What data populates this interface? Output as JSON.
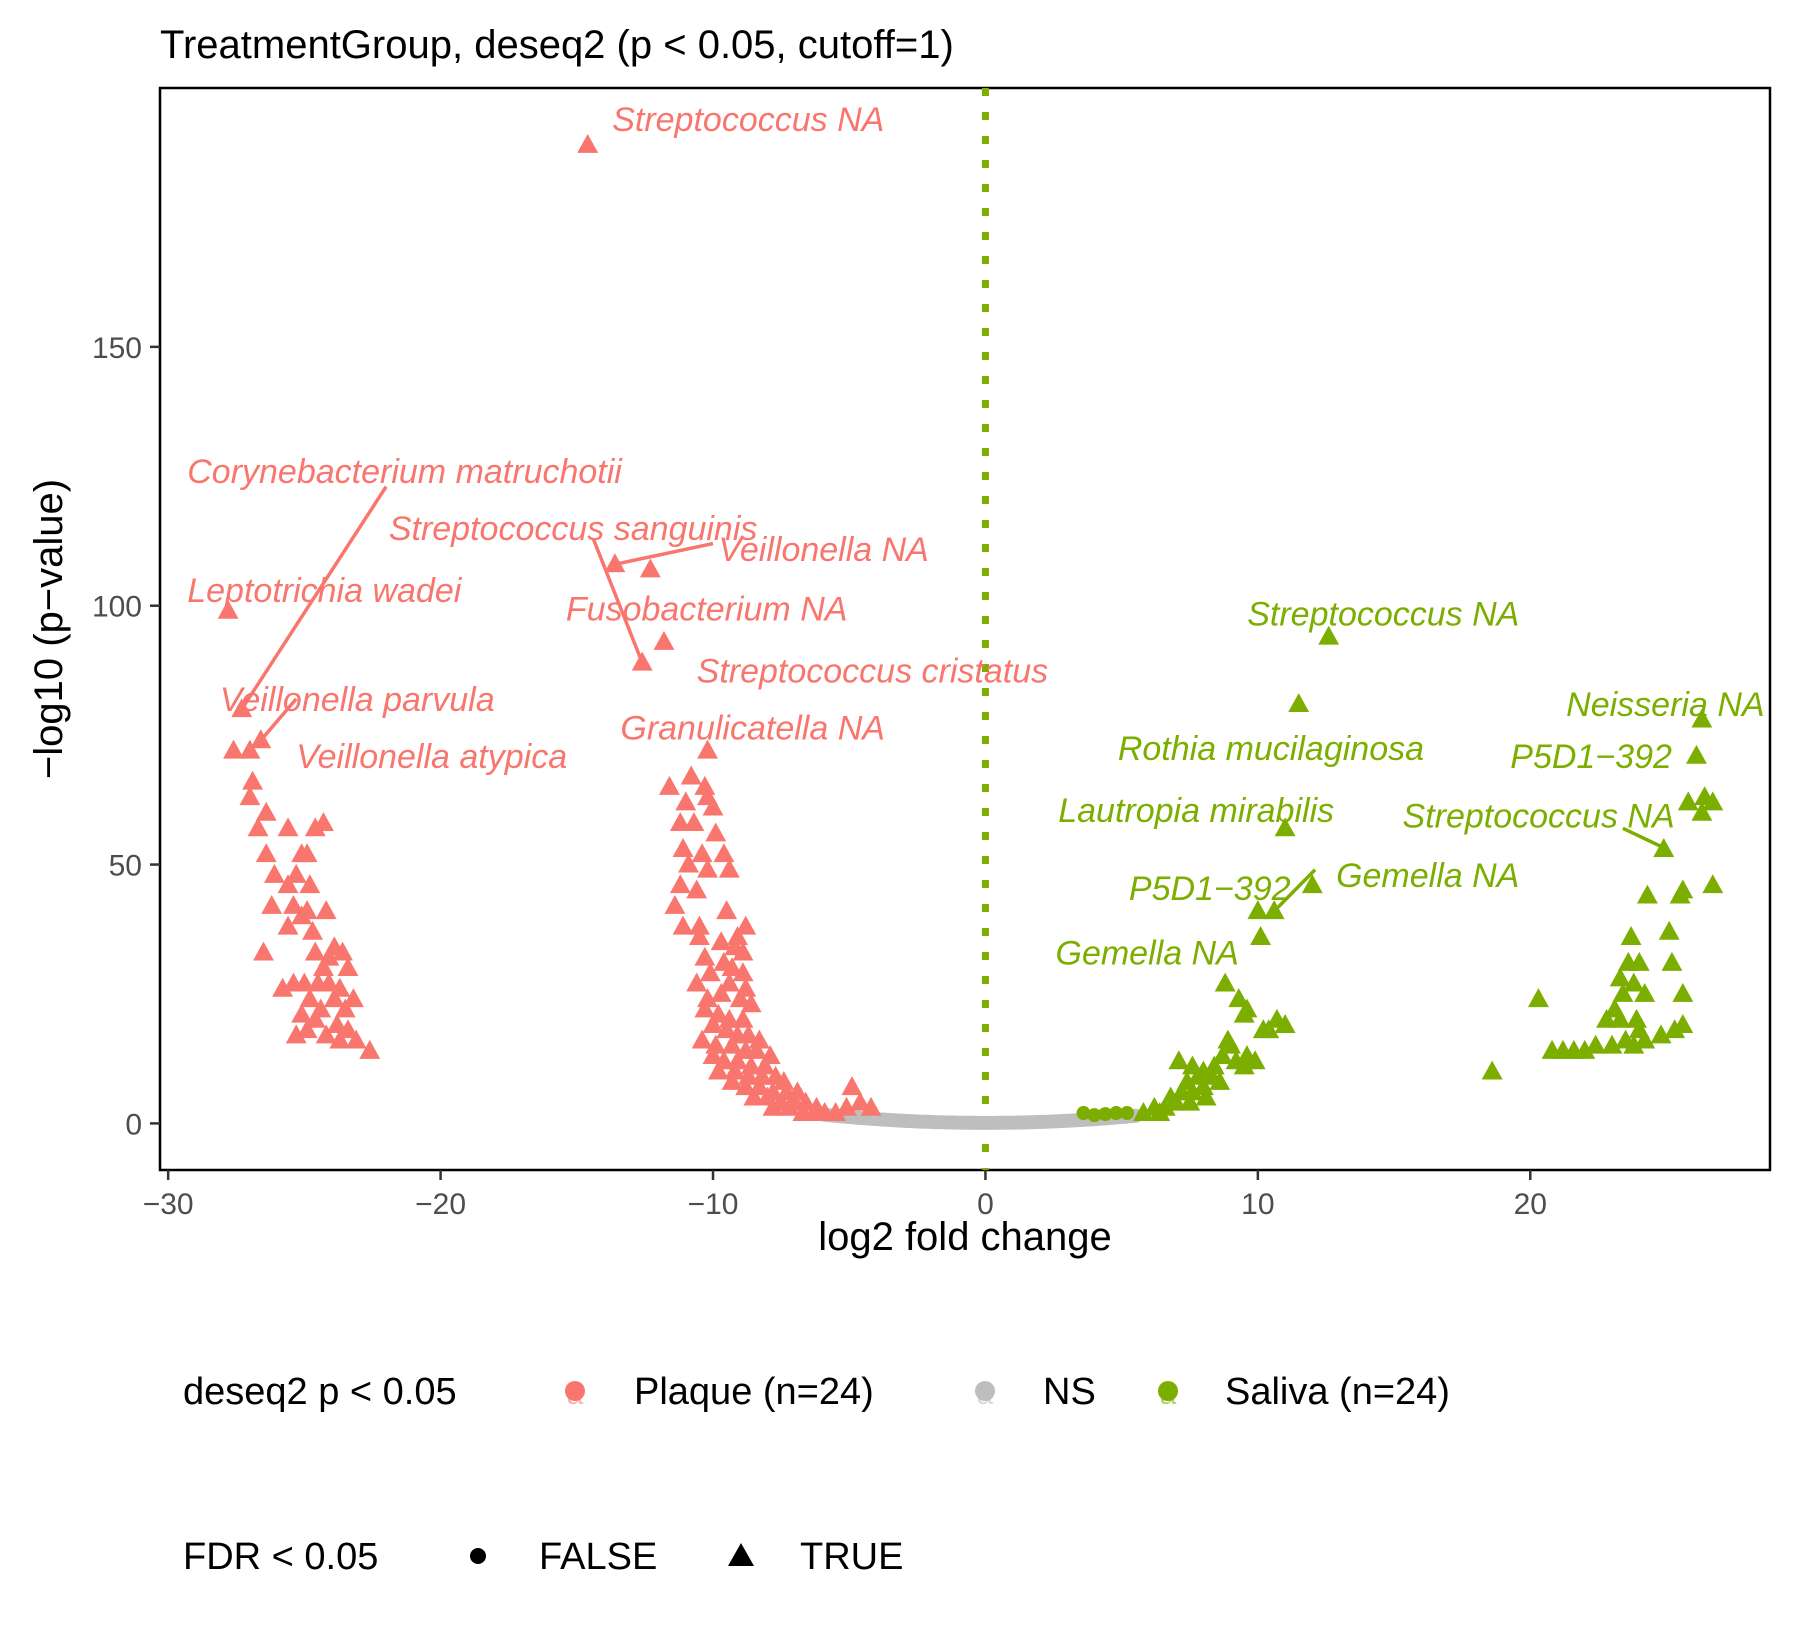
{
  "chart_data": {
    "type": "scatter",
    "title": "TreatmentGroup, deseq2 (p < 0.05, cutoff=1)",
    "xlabel": "log2 fold change",
    "ylabel": "−log10 (p−value)",
    "xlim": [
      -30.3,
      28.8
    ],
    "ylim": [
      -9,
      200
    ],
    "x_ticks": [
      -30,
      -20,
      -10,
      0,
      10,
      20
    ],
    "x_tick_labels": [
      "−30",
      "−20",
      "−10",
      "0",
      "10",
      "20"
    ],
    "y_ticks": [
      0,
      50,
      100,
      150
    ],
    "y_tick_labels": [
      "0",
      "50",
      "100",
      "150"
    ],
    "grid": false,
    "reference_line": {
      "x": 0,
      "style": "dotted",
      "color": "#7CAE00"
    },
    "colors": {
      "plaque": "#F8766D",
      "ns": "#BEBEBE",
      "saliva": "#7CAE00"
    },
    "legend": {
      "placement": "bottom",
      "color_title": "deseq2 p < 0.05",
      "color_entries": [
        {
          "key": "plaque",
          "label": "Plaque (n=24)"
        },
        {
          "key": "ns",
          "label": "NS"
        },
        {
          "key": "saliva",
          "label": "Saliva (n=24)"
        }
      ],
      "shape_title": "FDR < 0.05",
      "shape_entries": [
        {
          "shape": "circle",
          "label": "FALSE"
        },
        {
          "shape": "triangle",
          "label": "TRUE"
        }
      ]
    },
    "series": [
      {
        "key": "plaque",
        "shape": "triangle",
        "points": [
          [
            -14.6,
            189
          ],
          [
            -13.6,
            108
          ],
          [
            -12.3,
            107
          ],
          [
            -11.8,
            93
          ],
          [
            -12.6,
            89
          ],
          [
            -10.2,
            72
          ],
          [
            -27.8,
            99
          ],
          [
            -27.3,
            80
          ],
          [
            -27.0,
            72
          ],
          [
            -26.6,
            74
          ],
          [
            -27.6,
            72
          ],
          [
            -26.9,
            66
          ],
          [
            -27.0,
            63
          ],
          [
            -26.4,
            60
          ],
          [
            -26.7,
            57
          ],
          [
            -25.6,
            57
          ],
          [
            -24.3,
            58
          ],
          [
            -24.6,
            57
          ],
          [
            -26.4,
            52
          ],
          [
            -25.1,
            52
          ],
          [
            -24.9,
            52
          ],
          [
            -26.1,
            48
          ],
          [
            -25.3,
            48
          ],
          [
            -24.8,
            46
          ],
          [
            -25.6,
            46
          ],
          [
            -26.2,
            42
          ],
          [
            -25.4,
            42
          ],
          [
            -24.9,
            41
          ],
          [
            -24.2,
            41
          ],
          [
            -25.6,
            38
          ],
          [
            -25.1,
            40
          ],
          [
            -24.7,
            37
          ],
          [
            -23.9,
            34
          ],
          [
            -26.5,
            33
          ],
          [
            -24.6,
            33
          ],
          [
            -24.1,
            32
          ],
          [
            -23.6,
            33
          ],
          [
            -24.3,
            30
          ],
          [
            -23.4,
            30
          ],
          [
            -25.4,
            27
          ],
          [
            -25.0,
            27
          ],
          [
            -24.5,
            27
          ],
          [
            -24.1,
            27
          ],
          [
            -23.7,
            26
          ],
          [
            -25.8,
            26
          ],
          [
            -24.8,
            24
          ],
          [
            -23.9,
            24
          ],
          [
            -23.2,
            24
          ],
          [
            -24.4,
            22
          ],
          [
            -23.5,
            22
          ],
          [
            -25.1,
            21
          ],
          [
            -24.6,
            20
          ],
          [
            -23.8,
            19
          ],
          [
            -23.4,
            18
          ],
          [
            -24.9,
            18
          ],
          [
            -25.3,
            17
          ],
          [
            -24.2,
            17
          ],
          [
            -23.7,
            16
          ],
          [
            -23.1,
            16
          ],
          [
            -22.6,
            14
          ],
          [
            -11.6,
            65
          ],
          [
            -10.8,
            67
          ],
          [
            -10.3,
            65
          ],
          [
            -11.0,
            62
          ],
          [
            -10.2,
            63
          ],
          [
            -10.0,
            61
          ],
          [
            -11.2,
            58
          ],
          [
            -10.7,
            58
          ],
          [
            -9.9,
            56
          ],
          [
            -11.1,
            53
          ],
          [
            -10.4,
            52
          ],
          [
            -9.6,
            52
          ],
          [
            -10.9,
            50
          ],
          [
            -10.2,
            49
          ],
          [
            -9.4,
            49
          ],
          [
            -11.2,
            46
          ],
          [
            -10.6,
            45
          ],
          [
            -11.4,
            42
          ],
          [
            -9.5,
            41
          ],
          [
            -10.5,
            38
          ],
          [
            -11.1,
            38
          ],
          [
            -9.1,
            36
          ],
          [
            -8.8,
            38
          ],
          [
            -10.5,
            36
          ],
          [
            -9.7,
            35
          ],
          [
            -9.2,
            34
          ],
          [
            -8.9,
            33
          ],
          [
            -10.3,
            32
          ],
          [
            -9.6,
            31
          ],
          [
            -9.3,
            30
          ],
          [
            -8.9,
            29
          ],
          [
            -10.1,
            29
          ],
          [
            -10.6,
            27
          ],
          [
            -9.4,
            27
          ],
          [
            -8.8,
            26
          ],
          [
            -9.7,
            25
          ],
          [
            -10.2,
            24
          ],
          [
            -9.0,
            24
          ],
          [
            -8.6,
            23
          ],
          [
            -10.3,
            22
          ],
          [
            -9.8,
            21
          ],
          [
            -9.4,
            20
          ],
          [
            -8.9,
            20
          ],
          [
            -10.0,
            19
          ],
          [
            -9.5,
            18
          ],
          [
            -9.1,
            17
          ],
          [
            -8.7,
            17
          ],
          [
            -8.3,
            16
          ],
          [
            -10.4,
            16
          ],
          [
            -9.9,
            15
          ],
          [
            -9.3,
            15
          ],
          [
            -8.8,
            14
          ],
          [
            -8.4,
            14
          ],
          [
            -10.0,
            13
          ],
          [
            -9.6,
            12
          ],
          [
            -9.1,
            12
          ],
          [
            -8.6,
            11
          ],
          [
            -8.1,
            11
          ],
          [
            -7.9,
            13
          ],
          [
            -9.8,
            10
          ],
          [
            -9.2,
            10
          ],
          [
            -8.7,
            9
          ],
          [
            -8.2,
            9
          ],
          [
            -7.7,
            9
          ],
          [
            -7.4,
            8
          ],
          [
            -9.3,
            8
          ],
          [
            -8.8,
            7
          ],
          [
            -8.3,
            7
          ],
          [
            -7.8,
            6
          ],
          [
            -7.3,
            6
          ],
          [
            -6.9,
            6
          ],
          [
            -8.5,
            5
          ],
          [
            -8.0,
            5
          ],
          [
            -7.5,
            4
          ],
          [
            -7.0,
            4
          ],
          [
            -6.6,
            4
          ],
          [
            -6.2,
            3
          ],
          [
            -7.8,
            3
          ],
          [
            -7.2,
            3
          ],
          [
            -6.7,
            2
          ],
          [
            -6.3,
            2
          ],
          [
            -5.9,
            2
          ],
          [
            -5.5,
            2
          ],
          [
            -4.9,
            7
          ],
          [
            -4.6,
            4
          ],
          [
            -4.2,
            3
          ],
          [
            -5.1,
            3
          ]
        ]
      },
      {
        "key": "saliva",
        "shape": "triangle",
        "points": [
          [
            12.6,
            94
          ],
          [
            11.5,
            81
          ],
          [
            11.0,
            57
          ],
          [
            12.0,
            46
          ],
          [
            10.0,
            41
          ],
          [
            10.6,
            41
          ],
          [
            10.1,
            36
          ],
          [
            26.3,
            78
          ],
          [
            26.1,
            71
          ],
          [
            25.8,
            62
          ],
          [
            26.4,
            63
          ],
          [
            26.7,
            62
          ],
          [
            26.3,
            60
          ],
          [
            24.9,
            53
          ],
          [
            26.7,
            46
          ],
          [
            25.5,
            44
          ],
          [
            24.3,
            44
          ],
          [
            25.6,
            45
          ],
          [
            25.1,
            37
          ],
          [
            23.7,
            36
          ],
          [
            23.6,
            31
          ],
          [
            24.0,
            31
          ],
          [
            25.2,
            31
          ],
          [
            23.3,
            28
          ],
          [
            23.8,
            27
          ],
          [
            23.4,
            25
          ],
          [
            24.2,
            25
          ],
          [
            25.6,
            25
          ],
          [
            20.3,
            24
          ],
          [
            23.1,
            22
          ],
          [
            23.3,
            20
          ],
          [
            23.9,
            20
          ],
          [
            22.8,
            20
          ],
          [
            25.6,
            19
          ],
          [
            24.0,
            18
          ],
          [
            24.8,
            17
          ],
          [
            25.3,
            18
          ],
          [
            23.5,
            16
          ],
          [
            23.0,
            15
          ],
          [
            22.4,
            15
          ],
          [
            22.0,
            14
          ],
          [
            21.6,
            14
          ],
          [
            21.2,
            14
          ],
          [
            20.8,
            14
          ],
          [
            24.2,
            16
          ],
          [
            23.8,
            15
          ],
          [
            18.6,
            10
          ],
          [
            8.8,
            27
          ],
          [
            9.3,
            24
          ],
          [
            9.6,
            22
          ],
          [
            9.5,
            21
          ],
          [
            8.9,
            16
          ],
          [
            9.0,
            15
          ],
          [
            8.7,
            13
          ],
          [
            9.6,
            13
          ],
          [
            9.2,
            12
          ],
          [
            9.9,
            12
          ],
          [
            8.4,
            11
          ],
          [
            9.5,
            11
          ],
          [
            7.1,
            12
          ],
          [
            7.6,
            11
          ],
          [
            8.0,
            10
          ],
          [
            8.3,
            9
          ],
          [
            7.8,
            9
          ],
          [
            7.4,
            8
          ],
          [
            8.6,
            8
          ],
          [
            8.0,
            7
          ],
          [
            7.6,
            6
          ],
          [
            7.2,
            6
          ],
          [
            6.8,
            5
          ],
          [
            8.1,
            5
          ],
          [
            7.5,
            4
          ],
          [
            7.0,
            4
          ],
          [
            6.6,
            3
          ],
          [
            6.2,
            3
          ],
          [
            5.8,
            2
          ],
          [
            6.4,
            2
          ],
          [
            10.4,
            18
          ],
          [
            10.7,
            20
          ],
          [
            11.0,
            19
          ],
          [
            10.2,
            18
          ]
        ]
      },
      {
        "key": "saliva",
        "shape": "circle",
        "points": [
          [
            3.6,
            2
          ],
          [
            4.0,
            1.6
          ],
          [
            4.4,
            1.8
          ],
          [
            4.8,
            2
          ],
          [
            5.2,
            2
          ]
        ]
      }
    ],
    "ns_band": {
      "key": "ns",
      "shape": "circle",
      "x_range": [
        -5.9,
        5.6
      ]
    },
    "annotations": [
      {
        "text": "Streptococcus NA",
        "color": "plaque",
        "x": -13.7,
        "y": 194,
        "anchor": "start"
      },
      {
        "text": "Corynebacterium matruchotii",
        "color": "plaque",
        "x": -29.3,
        "y": 126,
        "anchor": "start",
        "line": [
          [
            -22.0,
            123
          ],
          [
            -27.3,
            80
          ]
        ]
      },
      {
        "text": "Streptococcus sanguinis",
        "color": "plaque",
        "x": -21.9,
        "y": 115,
        "anchor": "start",
        "line": [
          [
            -14.4,
            113
          ],
          [
            -12.6,
            89
          ]
        ]
      },
      {
        "text": "Veillonella NA",
        "color": "plaque",
        "x": -9.8,
        "y": 111,
        "anchor": "start",
        "line": [
          [
            -10.0,
            112
          ],
          [
            -13.6,
            108
          ]
        ]
      },
      {
        "text": "Leptotrichia wadei",
        "color": "plaque",
        "x": -29.3,
        "y": 103,
        "anchor": "start"
      },
      {
        "text": "Fusobacterium NA",
        "color": "plaque",
        "x": -15.4,
        "y": 99.5,
        "anchor": "start"
      },
      {
        "text": "Streptococcus cristatus",
        "color": "plaque",
        "x": -10.6,
        "y": 87.5,
        "anchor": "start"
      },
      {
        "text": "Veillonella parvula",
        "color": "plaque",
        "x": -28.1,
        "y": 82,
        "anchor": "start",
        "line": [
          [
            -25.3,
            82
          ],
          [
            -26.6,
            74
          ]
        ]
      },
      {
        "text": "Granulicatella NA",
        "color": "plaque",
        "x": -13.4,
        "y": 76.5,
        "anchor": "start"
      },
      {
        "text": "Veillonella atypica",
        "color": "plaque",
        "x": -25.3,
        "y": 71,
        "anchor": "start"
      },
      {
        "text": "Streptococcus NA",
        "color": "saliva",
        "x": 19.6,
        "y": 98.5,
        "anchor": "end"
      },
      {
        "text": "Neisseria NA",
        "color": "saliva",
        "x": 28.6,
        "y": 81,
        "anchor": "end"
      },
      {
        "text": "Rothia mucilaginosa",
        "color": "saliva",
        "x": 16.1,
        "y": 72.5,
        "anchor": "end"
      },
      {
        "text": "P5D1−392",
        "color": "saliva",
        "x": 25.2,
        "y": 71,
        "anchor": "end"
      },
      {
        "text": "Lautropia mirabilis",
        "color": "saliva",
        "x": 12.8,
        "y": 60.5,
        "anchor": "end"
      },
      {
        "text": "Streptococcus NA",
        "color": "saliva",
        "x": 25.3,
        "y": 59.5,
        "anchor": "end",
        "line": [
          [
            23.4,
            57
          ],
          [
            25.0,
            53
          ]
        ]
      },
      {
        "text": "Gemella NA",
        "color": "saliva",
        "x": 19.6,
        "y": 48,
        "anchor": "end",
        "line": [
          [
            12.1,
            49
          ],
          [
            10.6,
            41
          ]
        ]
      },
      {
        "text": "P5D1−392",
        "color": "saliva",
        "x": 11.2,
        "y": 45.5,
        "anchor": "end"
      },
      {
        "text": "Gemella NA",
        "color": "saliva",
        "x": 9.3,
        "y": 33,
        "anchor": "end"
      }
    ]
  }
}
